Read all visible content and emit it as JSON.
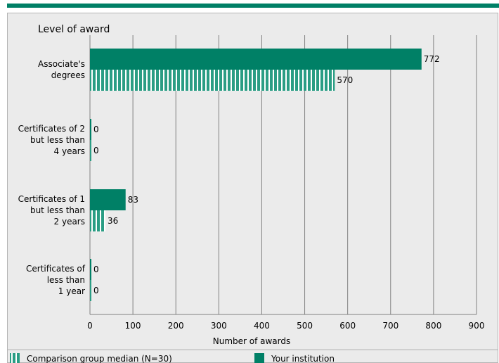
{
  "chart_data": {
    "type": "bar",
    "orientation": "horizontal",
    "title": "Level of award",
    "xlabel": "Number of awards",
    "ylabel": "",
    "xlim": [
      0,
      900
    ],
    "x_ticks": [
      0,
      100,
      200,
      300,
      400,
      500,
      600,
      700,
      800,
      900
    ],
    "grid": true,
    "legend_position": "bottom",
    "categories": [
      [
        "Associate's",
        "degrees"
      ],
      [
        "Certificates of 2",
        "but less than",
        "4 years"
      ],
      [
        "Certificates of 1",
        "but less than",
        "2 years"
      ],
      [
        "Certificates of",
        "less than",
        "1 year"
      ]
    ],
    "series": [
      {
        "name": "Your institution",
        "values": [
          772,
          0,
          83,
          0
        ],
        "color": "#008066",
        "pattern": "solid"
      },
      {
        "name": "Comparison group median (N=30)",
        "values": [
          570,
          0,
          36,
          0
        ],
        "color": "#2a9d84",
        "pattern": "striped"
      }
    ],
    "legend_order": [
      "Comparison group median (N=30)",
      "Your institution"
    ]
  }
}
